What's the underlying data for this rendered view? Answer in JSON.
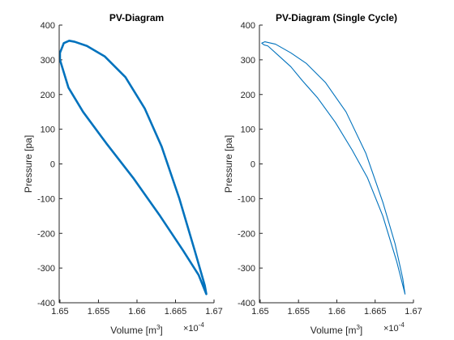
{
  "chart_data": [
    {
      "type": "line",
      "title": "PV-Diagram",
      "xlabel_main": "Volume [m",
      "xlabel_sup": "3",
      "xlabel_close": "]",
      "ylabel": "Pressure [pa]",
      "exponent_base": "×10",
      "exponent_power": "-4",
      "xlim": [
        1.6499,
        1.67
      ],
      "ylim": [
        -400,
        400
      ],
      "xticks": [
        1.65,
        1.655,
        1.66,
        1.665,
        1.67
      ],
      "xtick_labels": [
        "1.65",
        "1.655",
        "1.66",
        "1.665",
        "1.67"
      ],
      "yticks": [
        -400,
        -300,
        -200,
        -100,
        0,
        100,
        200,
        300,
        400
      ],
      "ytick_labels": [
        "-400",
        "-300",
        "-200",
        "-100",
        "0",
        "100",
        "200",
        "300",
        "400"
      ],
      "grid": false,
      "series": [
        {
          "color": "#0072BD",
          "line_width": "thick",
          "x": [
            1.6519,
            1.6512,
            1.6505,
            1.65,
            1.65,
            1.6511,
            1.653,
            1.656,
            1.6595,
            1.663,
            1.666,
            1.668,
            1.669,
            1.6688,
            1.6675,
            1.6655,
            1.6632,
            1.661,
            1.6585,
            1.6558,
            1.6535,
            1.6519
          ],
          "y": [
            352,
            355,
            348,
            320,
            300,
            220,
            150,
            60,
            -40,
            -150,
            -250,
            -320,
            -375,
            -350,
            -250,
            -100,
            50,
            160,
            250,
            310,
            340,
            352
          ]
        }
      ]
    },
    {
      "type": "line",
      "title": "PV-Diagram (Single Cycle)",
      "xlabel_main": "Volume [m",
      "xlabel_sup": "3",
      "xlabel_close": "]",
      "ylabel": "Pressure [pa]",
      "exponent_base": "×10",
      "exponent_power": "-4",
      "xlim": [
        1.6499,
        1.67
      ],
      "ylim": [
        -400,
        400
      ],
      "xticks": [
        1.65,
        1.655,
        1.66,
        1.665,
        1.67
      ],
      "xtick_labels": [
        "1.65",
        "1.655",
        "1.66",
        "1.665",
        "1.67"
      ],
      "yticks": [
        -400,
        -300,
        -200,
        -100,
        0,
        100,
        200,
        300,
        400
      ],
      "ytick_labels": [
        "-400",
        "-300",
        "-200",
        "-100",
        "0",
        "100",
        "200",
        "300",
        "400"
      ],
      "grid": false,
      "series": [
        {
          "color": "#0072BD",
          "line_width": "thin",
          "x": [
            1.6505,
            1.651,
            1.6515,
            1.6525,
            1.654,
            1.6555,
            1.6575,
            1.6598,
            1.662,
            1.664,
            1.666,
            1.6678,
            1.6689,
            1.6686,
            1.6676,
            1.666,
            1.6638,
            1.6612,
            1.6585,
            1.656,
            1.654,
            1.652,
            1.6506,
            1.6502,
            1.6505
          ],
          "y": [
            343,
            340,
            330,
            310,
            280,
            240,
            190,
            120,
            40,
            -40,
            -150,
            -280,
            -375,
            -330,
            -230,
            -110,
            30,
            150,
            235,
            290,
            320,
            345,
            352,
            348,
            343
          ]
        }
      ]
    }
  ]
}
